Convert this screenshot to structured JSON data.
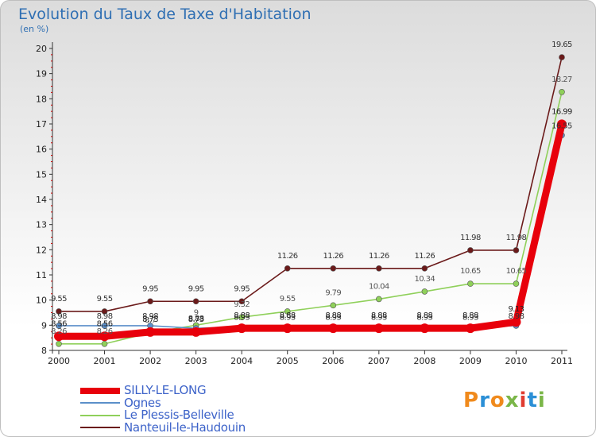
{
  "title": "Evolution du Taux de Taxe d'Habitation",
  "subtitle": "(en %)",
  "logo": {
    "text": "Proxiti",
    "colors": [
      "#f08a1c",
      "#2b8fd6",
      "#f08a1c",
      "#7ab648",
      "#e03c31",
      "#2b8fd6",
      "#7ab648"
    ]
  },
  "chart_data": {
    "type": "line",
    "title": "Evolution du Taux de Taxe d'Habitation",
    "ylabel": "(en %)",
    "categories": [
      "2000",
      "2001",
      "2002",
      "2003",
      "2004",
      "2005",
      "2006",
      "2007",
      "2008",
      "2009",
      "2010",
      "2011"
    ],
    "yticks": [
      "8",
      "9",
      "10",
      "11",
      "12",
      "13",
      "14",
      "15",
      "16",
      "17",
      "18",
      "19",
      "20"
    ],
    "ylim": [
      8,
      20
    ],
    "grid": false,
    "legend": "bottom-left",
    "series": [
      {
        "name": "SILLY-LE-LONG",
        "color": "#e8000b",
        "values": [
          8.56,
          8.56,
          8.73,
          8.73,
          8.88,
          8.88,
          8.88,
          8.88,
          8.88,
          8.88,
          9.13,
          16.99
        ],
        "labels": [
          "8.56",
          "8.56",
          "8.73",
          "8.73",
          "8.88",
          "8.88",
          "8.88",
          "8.88",
          "8.88",
          "8.88",
          "9.13",
          "16.99"
        ]
      },
      {
        "name": "Ognes",
        "color": "#5b8fc9",
        "values": [
          8.98,
          8.98,
          8.98,
          8.88,
          8.93,
          8.93,
          8.93,
          8.93,
          8.93,
          8.93,
          8.98,
          16.55
        ],
        "labels": [
          "8.98",
          "8.98",
          "8.98",
          "8.88",
          "8.93",
          "8.93",
          "8.93",
          "8.93",
          "8.93",
          "8.93",
          "8.98",
          "16.55"
        ]
      },
      {
        "name": "Le Plessis-Belleville",
        "color": "#8fd05a",
        "values": [
          8.26,
          8.26,
          8.7,
          9.0,
          9.32,
          9.55,
          9.79,
          10.04,
          10.34,
          10.65,
          10.65,
          18.27
        ],
        "labels": [
          "8.26",
          "8.26",
          "8.7",
          "9",
          "9.32",
          "9.55",
          "9.79",
          "10.04",
          "10.34",
          "10.65",
          "10.65",
          "18.27"
        ]
      },
      {
        "name": "Nanteuil-le-Haudouin",
        "color": "#6b1a1a",
        "values": [
          9.55,
          9.55,
          9.95,
          9.95,
          9.95,
          11.26,
          11.26,
          11.26,
          11.26,
          11.98,
          11.98,
          19.65
        ],
        "labels": [
          "9.55",
          "9.55",
          "9.95",
          "9.95",
          "9.95",
          "11.26",
          "11.26",
          "11.26",
          "11.26",
          "11.98",
          "11.98",
          "19.65"
        ]
      }
    ]
  }
}
